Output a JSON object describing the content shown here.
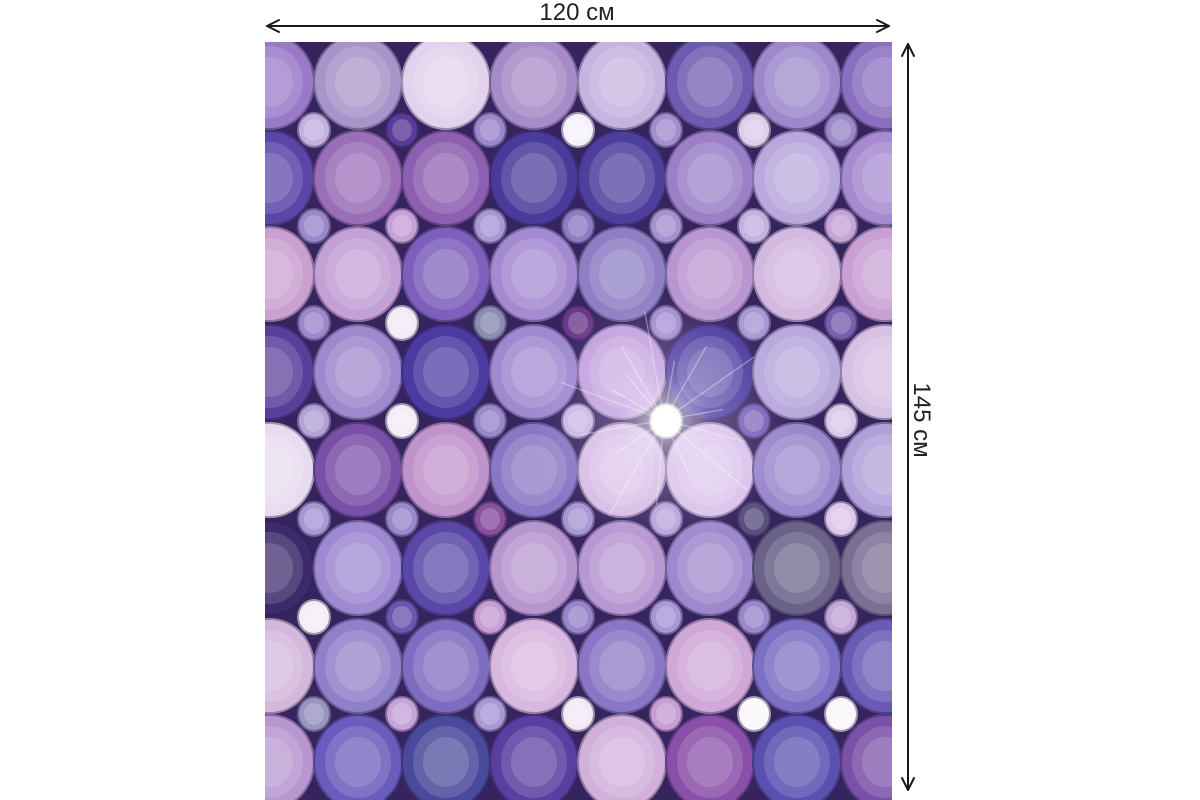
{
  "dimensions": {
    "width_label": "120 см",
    "height_label": "145 см"
  },
  "colors": {
    "page_background": "#ffffff",
    "arrow": "#1a1a1a",
    "pattern_background": "#35245e"
  }
}
